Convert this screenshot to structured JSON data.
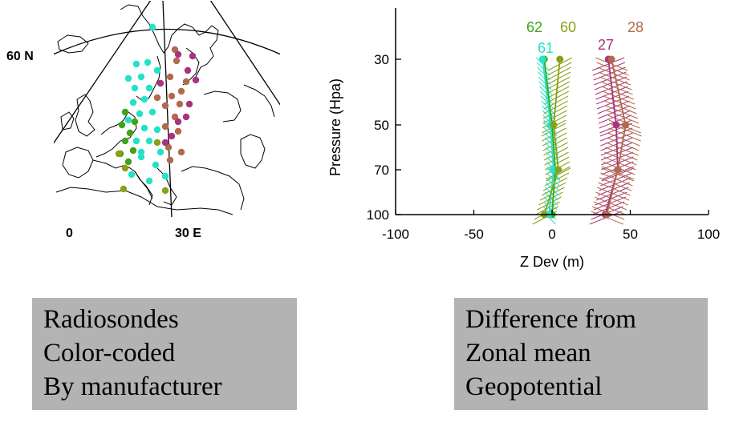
{
  "map": {
    "lat_label": "60 N",
    "lon_labels": [
      "0",
      "30 E"
    ],
    "colors": {
      "cyan": "#22e3c8",
      "green": "#3fa31b",
      "olive": "#88a11a",
      "brown": "#b06a4c",
      "magenta": "#a8347e"
    }
  },
  "caption_left": [
    "Radiosondes",
    "Color-coded",
    "By manufacturer"
  ],
  "caption_right": [
    "Difference from",
    "Zonal mean",
    "Geopotential"
  ],
  "chart_data": {
    "type": "line",
    "title": "",
    "xlabel": "Z Dev (m)",
    "ylabel": "Pressure (Hpa)",
    "xlim": [
      -100,
      100
    ],
    "xticks": [
      -100,
      -50,
      0,
      50,
      100
    ],
    "yticks": [
      30,
      50,
      70,
      100
    ],
    "y_levels": [
      30,
      50,
      70,
      100
    ],
    "y_axis": "pressure, decreasing upward",
    "series": [
      {
        "name": "62",
        "color": "#3fa31b",
        "values": [
          -5,
          0,
          2,
          0
        ]
      },
      {
        "name": "61",
        "color": "#22e3c8",
        "values": [
          -6,
          -1,
          1,
          -2
        ]
      },
      {
        "name": "60",
        "color": "#88a11a",
        "values": [
          5,
          1,
          4,
          -5
        ]
      },
      {
        "name": "27",
        "color": "#a8347e",
        "values": [
          36,
          41,
          42,
          34
        ]
      },
      {
        "name": "28",
        "color": "#b06a4c",
        "values": [
          38,
          47,
          42,
          35
        ]
      }
    ]
  }
}
